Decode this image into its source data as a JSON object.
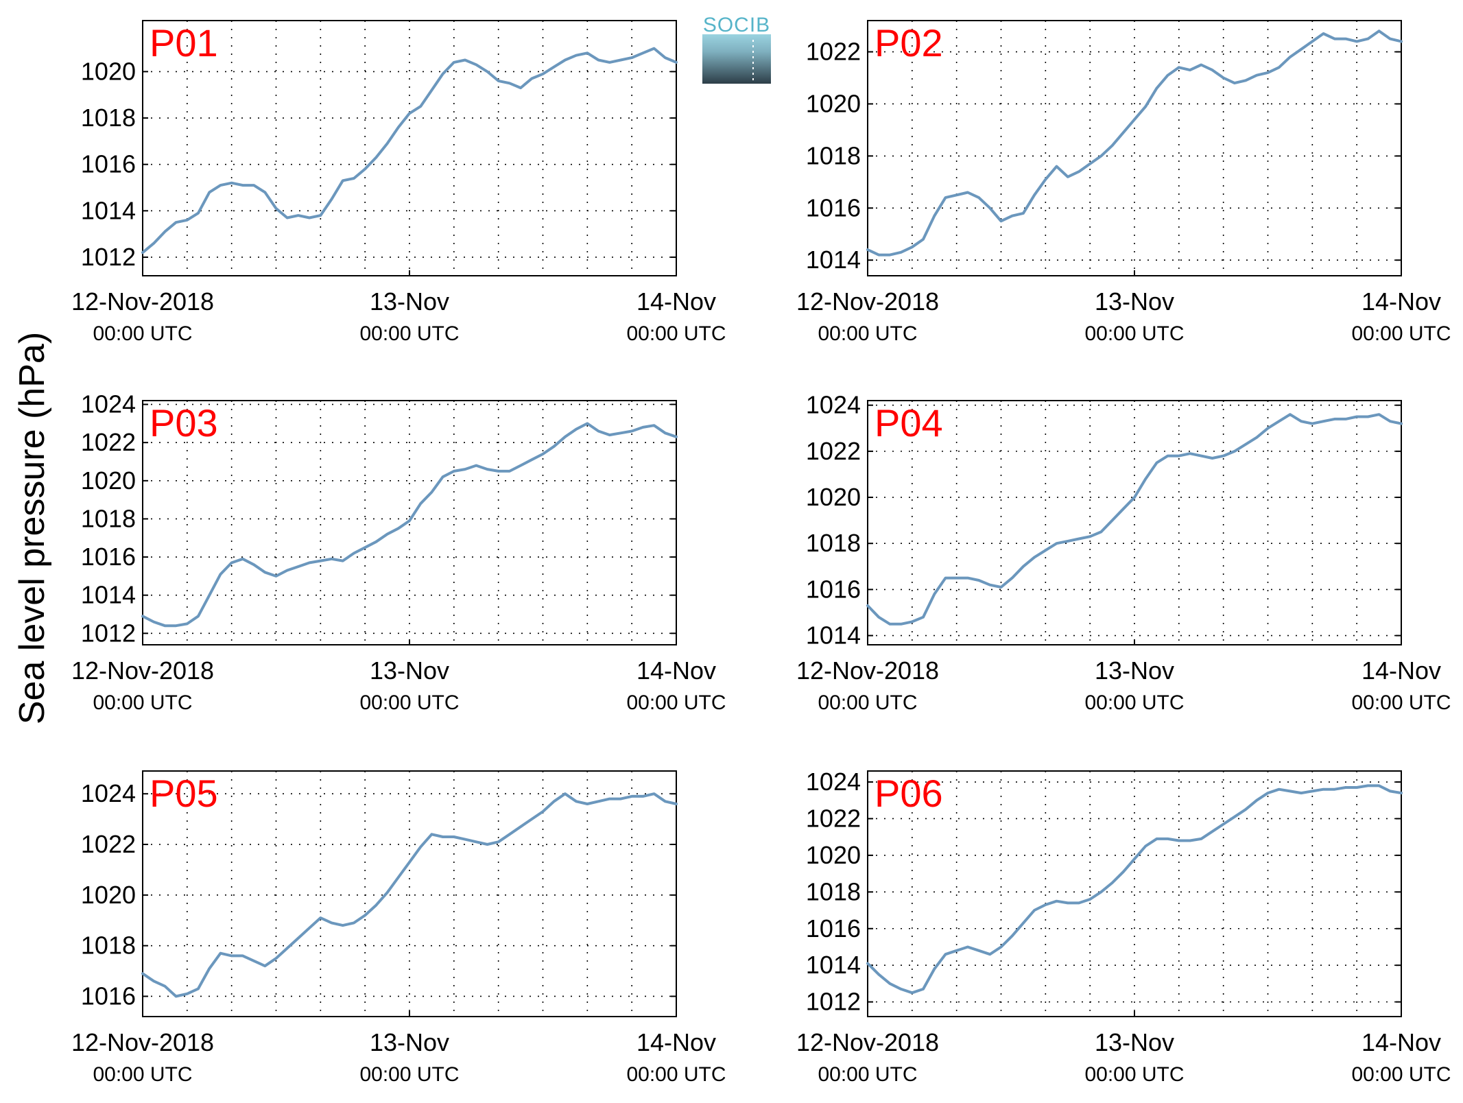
{
  "ylabel": "Sea level pressure (hPa)",
  "logo_text": "SOCIB",
  "x_ticks": [
    {
      "main": "12-Nov-2018",
      "sub": "00:00 UTC",
      "hours": 0
    },
    {
      "main": "13-Nov",
      "sub": "00:00 UTC",
      "hours": 24
    },
    {
      "main": "14-Nov",
      "sub": "00:00 UTC",
      "hours": 48
    }
  ],
  "colors": {
    "line": "#6b97bd",
    "tag": "#ff0000"
  },
  "chart_data": [
    {
      "type": "line",
      "title": "P01",
      "xlim": [
        0,
        48
      ],
      "ylim": [
        1011.2,
        1022.2
      ],
      "yticks": [
        1012,
        1014,
        1016,
        1018,
        1020
      ],
      "x": [
        0,
        1,
        2,
        3,
        4,
        5,
        6,
        7,
        8,
        9,
        10,
        11,
        12,
        13,
        14,
        15,
        16,
        17,
        18,
        19,
        20,
        21,
        22,
        23,
        24,
        25,
        26,
        27,
        28,
        29,
        30,
        31,
        32,
        33,
        34,
        35,
        36,
        37,
        38,
        39,
        40,
        41,
        42,
        43,
        44,
        45,
        46,
        47,
        48
      ],
      "values": [
        1012.2,
        1012.6,
        1013.1,
        1013.5,
        1013.6,
        1013.9,
        1014.8,
        1015.1,
        1015.2,
        1015.1,
        1015.1,
        1014.8,
        1014.1,
        1013.7,
        1013.8,
        1013.7,
        1013.8,
        1014.5,
        1015.3,
        1015.4,
        1015.8,
        1016.3,
        1016.9,
        1017.6,
        1018.2,
        1018.5,
        1019.2,
        1019.9,
        1020.4,
        1020.5,
        1020.3,
        1020.0,
        1019.6,
        1019.5,
        1019.3,
        1019.7,
        1019.9,
        1020.2,
        1020.5,
        1020.7,
        1020.8,
        1020.5,
        1020.4,
        1020.5,
        1020.6,
        1020.8,
        1021.0,
        1020.6,
        1020.4
      ]
    },
    {
      "type": "line",
      "title": "P02",
      "xlim": [
        0,
        48
      ],
      "ylim": [
        1013.4,
        1023.2
      ],
      "yticks": [
        1014,
        1016,
        1018,
        1020,
        1022
      ],
      "x": [
        0,
        1,
        2,
        3,
        4,
        5,
        6,
        7,
        8,
        9,
        10,
        11,
        12,
        13,
        14,
        15,
        16,
        17,
        18,
        19,
        20,
        21,
        22,
        23,
        24,
        25,
        26,
        27,
        28,
        29,
        30,
        31,
        32,
        33,
        34,
        35,
        36,
        37,
        38,
        39,
        40,
        41,
        42,
        43,
        44,
        45,
        46,
        47,
        48
      ],
      "values": [
        1014.4,
        1014.2,
        1014.2,
        1014.3,
        1014.5,
        1014.8,
        1015.7,
        1016.4,
        1016.5,
        1016.6,
        1016.4,
        1016.0,
        1015.5,
        1015.7,
        1015.8,
        1016.5,
        1017.1,
        1017.6,
        1017.2,
        1017.4,
        1017.7,
        1018.0,
        1018.4,
        1018.9,
        1019.4,
        1019.9,
        1020.6,
        1021.1,
        1021.4,
        1021.3,
        1021.5,
        1021.3,
        1021.0,
        1020.8,
        1020.9,
        1021.1,
        1021.2,
        1021.4,
        1021.8,
        1022.1,
        1022.4,
        1022.7,
        1022.5,
        1022.5,
        1022.4,
        1022.5,
        1022.8,
        1022.5,
        1022.4
      ]
    },
    {
      "type": "line",
      "title": "P03",
      "xlim": [
        0,
        48
      ],
      "ylim": [
        1011.4,
        1024.2
      ],
      "yticks": [
        1012,
        1014,
        1016,
        1018,
        1020,
        1022,
        1024
      ],
      "x": [
        0,
        1,
        2,
        3,
        4,
        5,
        6,
        7,
        8,
        9,
        10,
        11,
        12,
        13,
        14,
        15,
        16,
        17,
        18,
        19,
        20,
        21,
        22,
        23,
        24,
        25,
        26,
        27,
        28,
        29,
        30,
        31,
        32,
        33,
        34,
        35,
        36,
        37,
        38,
        39,
        40,
        41,
        42,
        43,
        44,
        45,
        46,
        47,
        48
      ],
      "values": [
        1012.9,
        1012.6,
        1012.4,
        1012.4,
        1012.5,
        1012.9,
        1014.0,
        1015.1,
        1015.7,
        1015.9,
        1015.6,
        1015.2,
        1015.0,
        1015.3,
        1015.5,
        1015.7,
        1015.8,
        1015.9,
        1015.8,
        1016.2,
        1016.5,
        1016.8,
        1017.2,
        1017.5,
        1017.9,
        1018.8,
        1019.4,
        1020.2,
        1020.5,
        1020.6,
        1020.8,
        1020.6,
        1020.5,
        1020.5,
        1020.8,
        1021.1,
        1021.4,
        1021.8,
        1022.3,
        1022.7,
        1023.0,
        1022.6,
        1022.4,
        1022.5,
        1022.6,
        1022.8,
        1022.9,
        1022.5,
        1022.3
      ]
    },
    {
      "type": "line",
      "title": "P04",
      "xlim": [
        0,
        48
      ],
      "ylim": [
        1013.6,
        1024.2
      ],
      "yticks": [
        1014,
        1016,
        1018,
        1020,
        1022,
        1024
      ],
      "x": [
        0,
        1,
        2,
        3,
        4,
        5,
        6,
        7,
        8,
        9,
        10,
        11,
        12,
        13,
        14,
        15,
        16,
        17,
        18,
        19,
        20,
        21,
        22,
        23,
        24,
        25,
        26,
        27,
        28,
        29,
        30,
        31,
        32,
        33,
        34,
        35,
        36,
        37,
        38,
        39,
        40,
        41,
        42,
        43,
        44,
        45,
        46,
        47,
        48
      ],
      "values": [
        1015.3,
        1014.8,
        1014.5,
        1014.5,
        1014.6,
        1014.8,
        1015.8,
        1016.5,
        1016.5,
        1016.5,
        1016.4,
        1016.2,
        1016.1,
        1016.5,
        1017.0,
        1017.4,
        1017.7,
        1018.0,
        1018.1,
        1018.2,
        1018.3,
        1018.5,
        1019.0,
        1019.5,
        1020.0,
        1020.8,
        1021.5,
        1021.8,
        1021.8,
        1021.9,
        1021.8,
        1021.7,
        1021.8,
        1022.0,
        1022.3,
        1022.6,
        1023.0,
        1023.3,
        1023.6,
        1023.3,
        1023.2,
        1023.3,
        1023.4,
        1023.4,
        1023.5,
        1023.5,
        1023.6,
        1023.3,
        1023.2
      ]
    },
    {
      "type": "line",
      "title": "P05",
      "xlim": [
        0,
        48
      ],
      "ylim": [
        1015.2,
        1024.9
      ],
      "yticks": [
        1016,
        1018,
        1020,
        1022,
        1024
      ],
      "x": [
        0,
        1,
        2,
        3,
        4,
        5,
        6,
        7,
        8,
        9,
        10,
        11,
        12,
        13,
        14,
        15,
        16,
        17,
        18,
        19,
        20,
        21,
        22,
        23,
        24,
        25,
        26,
        27,
        28,
        29,
        30,
        31,
        32,
        33,
        34,
        35,
        36,
        37,
        38,
        39,
        40,
        41,
        42,
        43,
        44,
        45,
        46,
        47,
        48
      ],
      "values": [
        1016.9,
        1016.6,
        1016.4,
        1016.0,
        1016.1,
        1016.3,
        1017.1,
        1017.7,
        1017.6,
        1017.6,
        1017.4,
        1017.2,
        1017.5,
        1017.9,
        1018.3,
        1018.7,
        1019.1,
        1018.9,
        1018.8,
        1018.9,
        1019.2,
        1019.6,
        1020.1,
        1020.7,
        1021.3,
        1021.9,
        1022.4,
        1022.3,
        1022.3,
        1022.2,
        1022.1,
        1022.0,
        1022.1,
        1022.4,
        1022.7,
        1023.0,
        1023.3,
        1023.7,
        1024.0,
        1023.7,
        1023.6,
        1023.7,
        1023.8,
        1023.8,
        1023.9,
        1023.9,
        1024.0,
        1023.7,
        1023.6
      ]
    },
    {
      "type": "line",
      "title": "P06",
      "xlim": [
        0,
        48
      ],
      "ylim": [
        1011.2,
        1024.6
      ],
      "yticks": [
        1012,
        1014,
        1016,
        1018,
        1020,
        1022,
        1024
      ],
      "x": [
        0,
        1,
        2,
        3,
        4,
        5,
        6,
        7,
        8,
        9,
        10,
        11,
        12,
        13,
        14,
        15,
        16,
        17,
        18,
        19,
        20,
        21,
        22,
        23,
        24,
        25,
        26,
        27,
        28,
        29,
        30,
        31,
        32,
        33,
        34,
        35,
        36,
        37,
        38,
        39,
        40,
        41,
        42,
        43,
        44,
        45,
        46,
        47,
        48
      ],
      "values": [
        1014.1,
        1013.5,
        1013.0,
        1012.7,
        1012.5,
        1012.7,
        1013.8,
        1014.6,
        1014.8,
        1015.0,
        1014.8,
        1014.6,
        1015.0,
        1015.6,
        1016.3,
        1017.0,
        1017.3,
        1017.5,
        1017.4,
        1017.4,
        1017.6,
        1018.0,
        1018.5,
        1019.1,
        1019.8,
        1020.5,
        1020.9,
        1020.9,
        1020.8,
        1020.8,
        1020.9,
        1021.3,
        1021.7,
        1022.1,
        1022.5,
        1023.0,
        1023.4,
        1023.6,
        1023.5,
        1023.4,
        1023.5,
        1023.6,
        1023.6,
        1023.7,
        1023.7,
        1023.8,
        1023.8,
        1023.5,
        1023.4
      ]
    }
  ]
}
